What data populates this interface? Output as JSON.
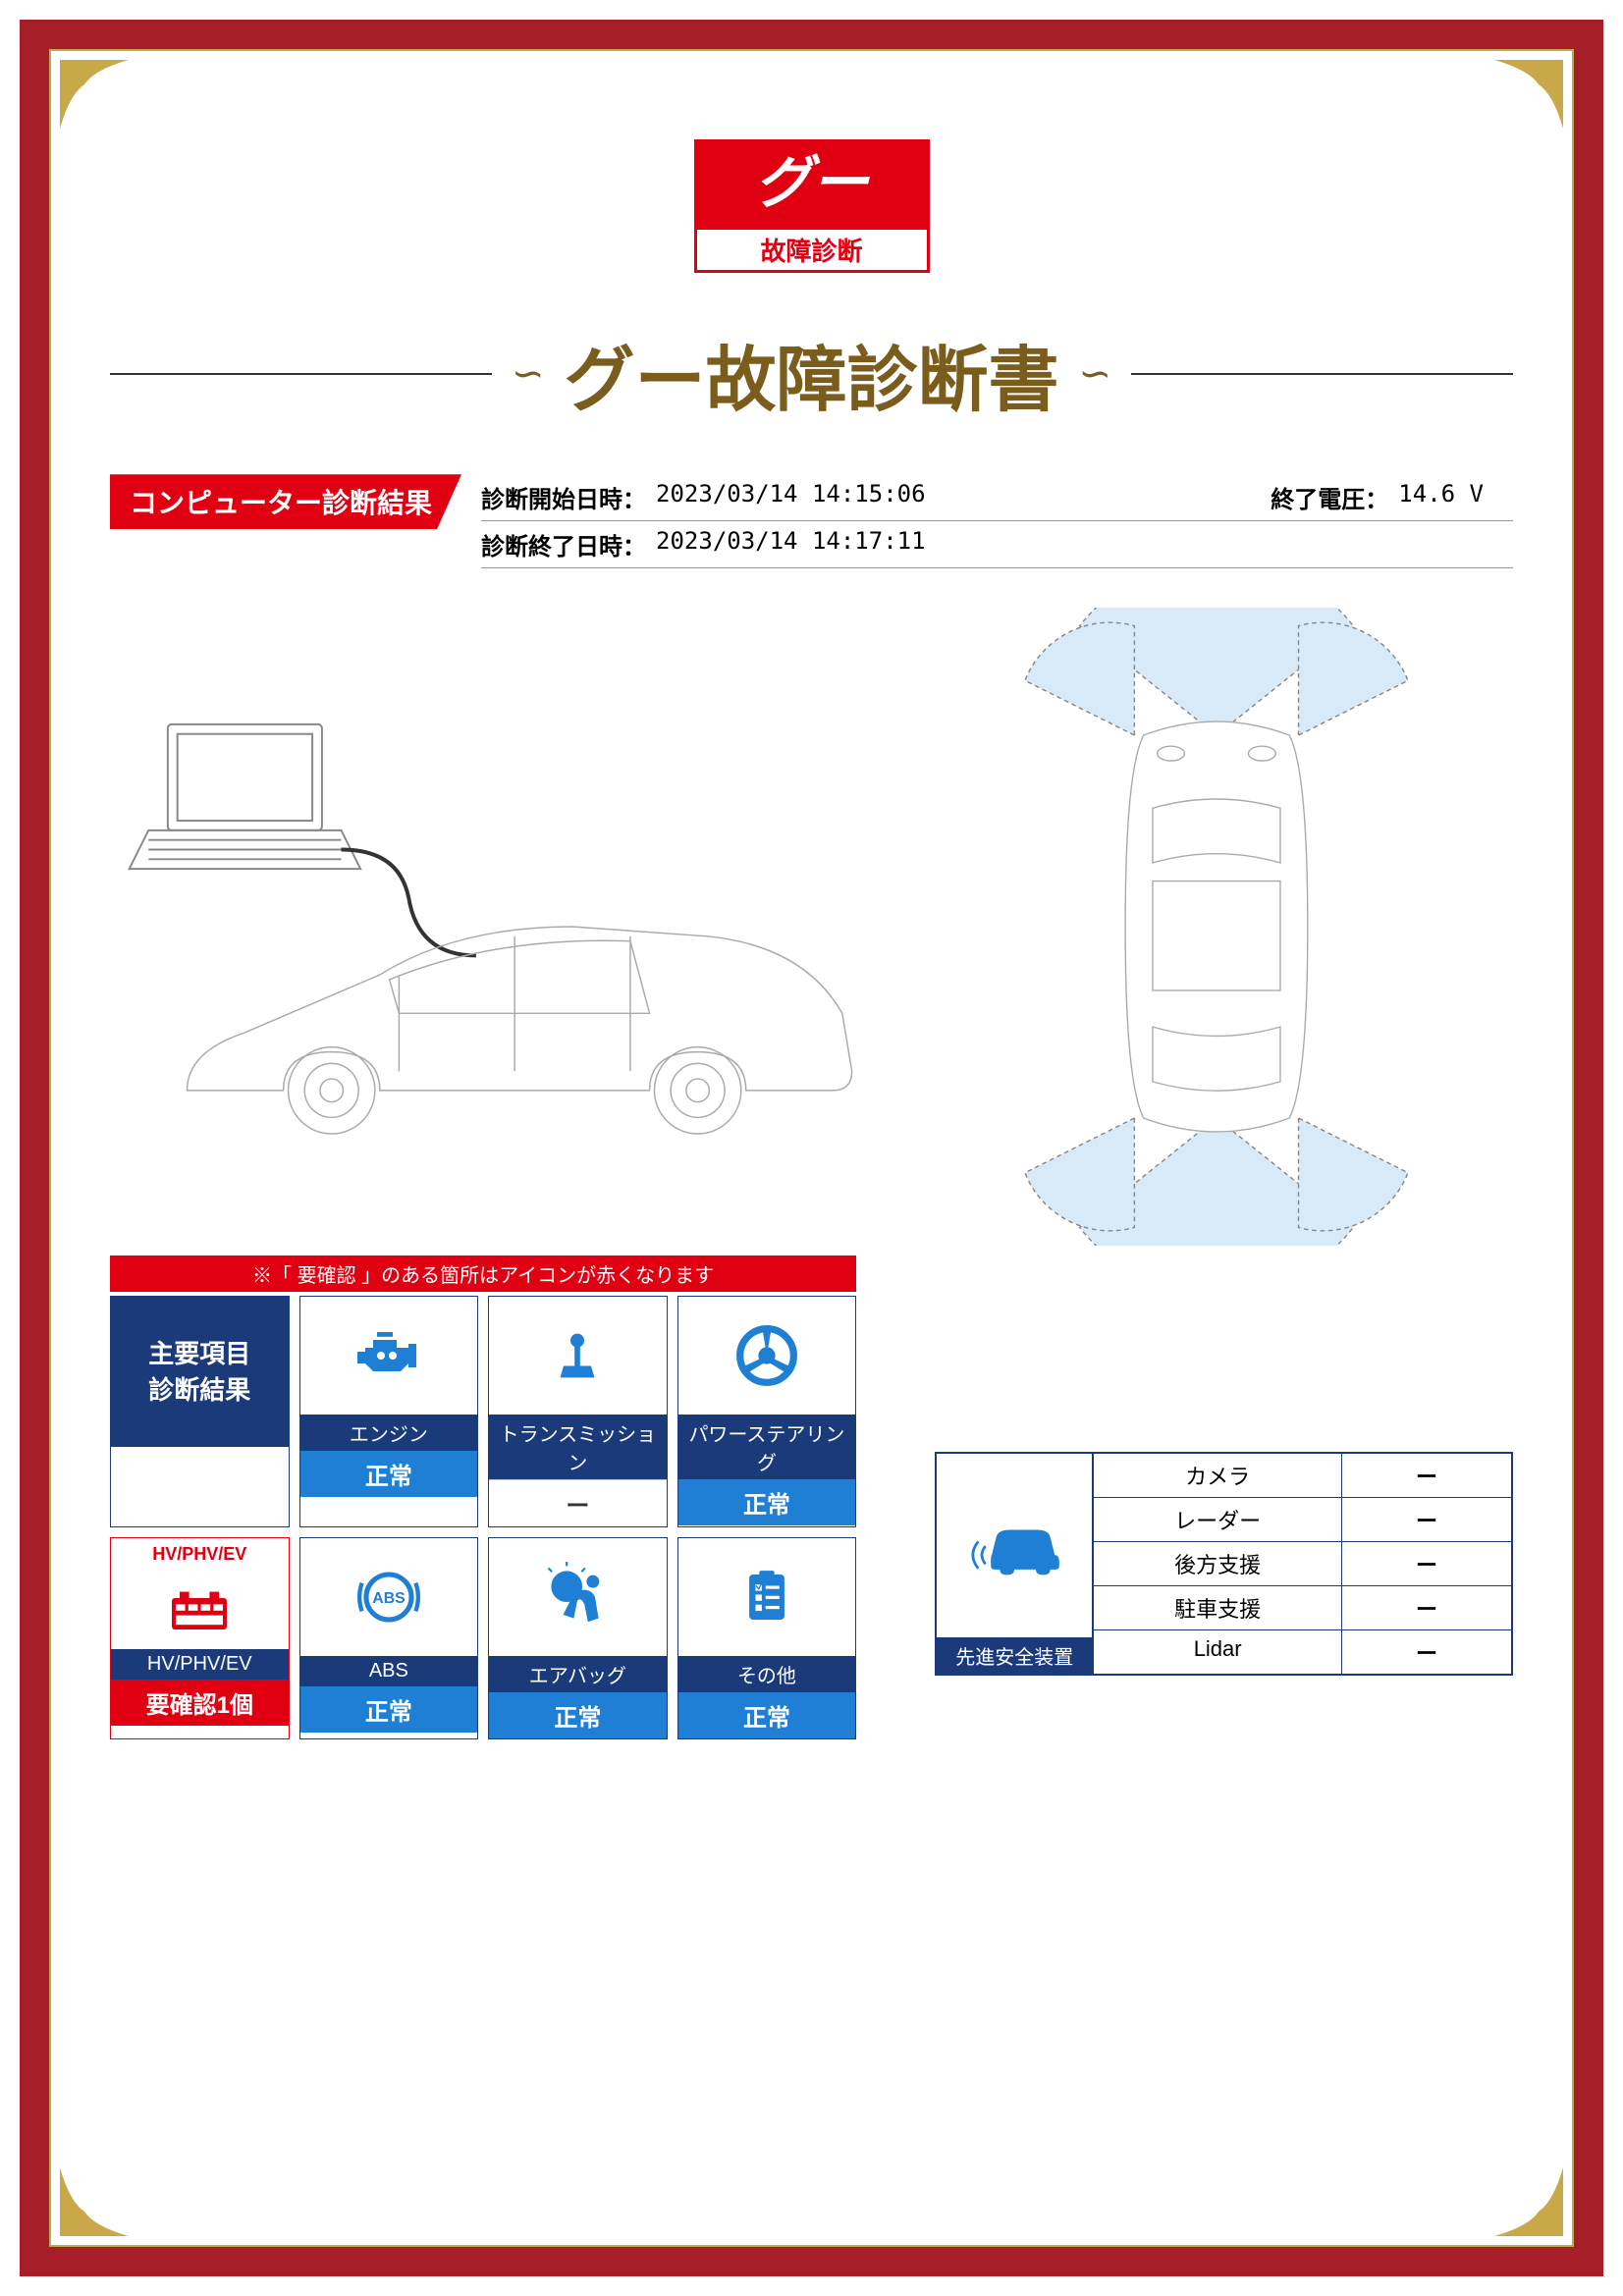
{
  "colors": {
    "frame": "#a51e28",
    "gold": "#c9a849",
    "red": "#e10012",
    "navy": "#1b3a7a",
    "blue": "#1e7fd4",
    "title": "#7a5c1c",
    "line": "#333333"
  },
  "logo": {
    "main": "グー",
    "sub": "故障診断"
  },
  "title": "グー故障診断書",
  "section_header": "コンピューター診断結果",
  "info": {
    "start_label": "診断開始日時：",
    "start_value": "2023/03/14 14:15:06",
    "end_label": "診断終了日時：",
    "end_value": "2023/03/14 14:17:11",
    "voltage_label": "終了電圧：",
    "voltage_value": "14.6 V"
  },
  "note": "※「 要確認 」のある箇所はアイコンが赤くなります",
  "main_results_title": "主要項目\n診断結果",
  "items": [
    {
      "label": "エンジン",
      "status": "正常",
      "status_class": "status-blue",
      "icon": "engine"
    },
    {
      "label": "トランスミッション",
      "status": "ー",
      "status_class": "status-white",
      "icon": "transmission"
    },
    {
      "label": "パワーステアリング",
      "status": "正常",
      "status_class": "status-blue",
      "icon": "steering"
    }
  ],
  "hv": {
    "top": "HV/PHV/EV",
    "label": "HV/PHV/EV",
    "status": "要確認1個",
    "status_class": "status-red",
    "icon": "battery"
  },
  "items2": [
    {
      "label": "ABS",
      "status": "正常",
      "status_class": "status-blue",
      "icon": "abs"
    },
    {
      "label": "エアバッグ",
      "status": "正常",
      "status_class": "status-blue",
      "icon": "airbag"
    },
    {
      "label": "その他",
      "status": "正常",
      "status_class": "status-blue",
      "icon": "clipboard"
    }
  ],
  "safety": {
    "title": "先進安全装置",
    "rows": [
      {
        "name": "カメラ",
        "value": "ー"
      },
      {
        "name": "レーダー",
        "value": "ー"
      },
      {
        "name": "後方支援",
        "value": "ー"
      },
      {
        "name": "駐車支援",
        "value": "ー"
      },
      {
        "name": "Lidar",
        "value": "ー"
      }
    ]
  }
}
